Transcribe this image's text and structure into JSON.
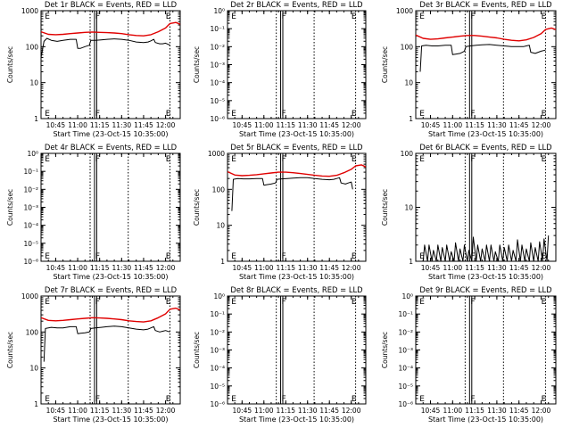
{
  "chart_data": [
    {
      "type": "line",
      "title": "Det 1r BLACK = Events, RED = LLD",
      "xlabel": "Start Time (23-Oct-15 10:35:00)",
      "ylabel": "Counts/sec",
      "yscale": "log",
      "ylim": [
        1,
        1000
      ],
      "y_ticks": [
        "1",
        "10",
        "100",
        "1000"
      ],
      "x_ticks": [
        "10:45",
        "11:00",
        "11:15",
        "11:30",
        "11:45",
        "12:00"
      ],
      "flags": [
        "E",
        "F",
        "E"
      ],
      "series": [
        {
          "color": "#000000",
          "x": [
            "10:35",
            "10:37",
            "10:39",
            "10:42",
            "10:46",
            "10:50",
            "10:55",
            "10:59",
            "11:00",
            "11:02",
            "11:05",
            "11:08",
            "11:09",
            "11:12",
            "11:16",
            "11:20",
            "11:25",
            "11:30",
            "11:35",
            "11:40",
            "11:45",
            "11:48",
            "11:50",
            "11:52",
            "11:53",
            "11:56",
            "11:58",
            "12:00",
            "12:03"
          ],
          "values": [
            50,
            140,
            170,
            150,
            140,
            150,
            160,
            160,
            90,
            90,
            100,
            110,
            150,
            150,
            155,
            160,
            165,
            160,
            150,
            135,
            130,
            135,
            145,
            160,
            130,
            120,
            120,
            125,
            110
          ]
        },
        {
          "color": "#e00000",
          "x": [
            "10:35",
            "10:40",
            "10:45",
            "10:50",
            "10:55",
            "11:00",
            "11:05",
            "11:10",
            "11:15",
            "11:20",
            "11:25",
            "11:30",
            "11:35",
            "11:40",
            "11:45",
            "11:50",
            "11:55",
            "12:00",
            "12:03",
            "12:07",
            "12:10"
          ],
          "values": [
            260,
            220,
            215,
            220,
            230,
            240,
            250,
            255,
            250,
            245,
            240,
            230,
            215,
            205,
            200,
            215,
            260,
            330,
            440,
            470,
            420
          ]
        }
      ]
    },
    {
      "type": "line",
      "title": "Det 2r BLACK = Events, RED = LLD",
      "xlabel": "Start Time (23-Oct-15 10:35:00)",
      "ylabel": "Counts/sec",
      "yscale": "log",
      "ylim": [
        1e-06,
        1
      ],
      "y_ticks": [
        "10⁻⁶",
        "10⁻⁵",
        "10⁻⁴",
        "10⁻³",
        "10⁻²",
        "10⁻¹",
        "10⁰"
      ],
      "x_ticks": [
        "10:45",
        "11:00",
        "11:15",
        "11:30",
        "11:45",
        "12:00"
      ],
      "flags": [
        "E",
        "F",
        "E"
      ],
      "series": []
    },
    {
      "type": "line",
      "title": "Det 3r BLACK = Events, RED = LLD",
      "xlabel": "Start Time (23-Oct-15 10:35:00)",
      "ylabel": "Counts/sec",
      "yscale": "log",
      "ylim": [
        1,
        1000
      ],
      "y_ticks": [
        "1",
        "10",
        "100",
        "1000"
      ],
      "x_ticks": [
        "10:45",
        "11:00",
        "11:15",
        "11:30",
        "11:45",
        "12:00"
      ],
      "flags": [
        "E",
        "F",
        "E"
      ],
      "series": [
        {
          "color": "#000000",
          "x": [
            "10:38",
            "10:39",
            "10:42",
            "10:46",
            "10:50",
            "10:55",
            "10:59",
            "11:00",
            "11:02",
            "11:05",
            "11:08",
            "11:09",
            "11:12",
            "11:16",
            "11:20",
            "11:25",
            "11:30",
            "11:35",
            "11:40",
            "11:45",
            "11:48",
            "11:50",
            "11:52",
            "11:53",
            "11:56",
            "11:58",
            "12:00",
            "12:03"
          ],
          "values": [
            20,
            105,
            110,
            105,
            105,
            110,
            110,
            60,
            62,
            65,
            75,
            100,
            105,
            110,
            112,
            115,
            110,
            105,
            100,
            100,
            100,
            105,
            110,
            70,
            65,
            70,
            75,
            80
          ]
        },
        {
          "color": "#e00000",
          "x": [
            "10:35",
            "10:40",
            "10:45",
            "10:50",
            "10:55",
            "11:00",
            "11:05",
            "11:10",
            "11:15",
            "11:20",
            "11:25",
            "11:30",
            "11:35",
            "11:40",
            "11:45",
            "11:50",
            "11:55",
            "12:00",
            "12:03",
            "12:07",
            "12:10"
          ],
          "values": [
            210,
            170,
            160,
            165,
            175,
            185,
            195,
            205,
            205,
            195,
            185,
            175,
            160,
            150,
            145,
            155,
            180,
            230,
            300,
            330,
            300
          ]
        }
      ]
    },
    {
      "type": "line",
      "title": "Det 4r BLACK = Events, RED = LLD",
      "xlabel": "Start Time (23-Oct-15 10:35:00)",
      "ylabel": "Counts/sec",
      "yscale": "log",
      "ylim": [
        1e-06,
        1
      ],
      "y_ticks": [
        "10⁻⁶",
        "10⁻⁵",
        "10⁻⁴",
        "10⁻³",
        "10⁻²",
        "10⁻¹",
        "10⁰"
      ],
      "x_ticks": [
        "10:45",
        "11:00",
        "11:15",
        "11:30",
        "11:45",
        "12:00"
      ],
      "flags": [
        "E",
        "F",
        "E"
      ],
      "series": []
    },
    {
      "type": "line",
      "title": "Det 5r BLACK = Events, RED = LLD",
      "xlabel": "Start Time (23-Oct-15 10:35:00)",
      "ylabel": "Counts/sec",
      "yscale": "log",
      "ylim": [
        1,
        1000
      ],
      "y_ticks": [
        "1",
        "10",
        "100",
        "1000"
      ],
      "x_ticks": [
        "10:45",
        "11:00",
        "11:15",
        "11:30",
        "11:45",
        "12:00"
      ],
      "flags": [
        "E",
        "F",
        "E"
      ],
      "series": [
        {
          "color": "#000000",
          "x": [
            "10:38",
            "10:39",
            "10:42",
            "10:46",
            "10:50",
            "10:55",
            "10:59",
            "11:00",
            "11:02",
            "11:05",
            "11:08",
            "11:09",
            "11:12",
            "11:16",
            "11:20",
            "11:25",
            "11:30",
            "11:35",
            "11:40",
            "11:45",
            "11:48",
            "11:50",
            "11:52",
            "11:53",
            "11:56",
            "11:58",
            "12:00",
            "12:01"
          ],
          "values": [
            25,
            190,
            200,
            195,
            195,
            200,
            200,
            130,
            135,
            140,
            150,
            190,
            195,
            200,
            205,
            210,
            210,
            200,
            190,
            185,
            190,
            200,
            210,
            150,
            140,
            150,
            160,
            100
          ]
        },
        {
          "color": "#e00000",
          "x": [
            "10:35",
            "10:40",
            "10:45",
            "10:50",
            "10:55",
            "11:00",
            "11:05",
            "11:10",
            "11:15",
            "11:20",
            "11:25",
            "11:30",
            "11:35",
            "11:40",
            "11:45",
            "11:50",
            "11:55",
            "12:00",
            "12:03",
            "12:07",
            "12:10"
          ],
          "values": [
            310,
            250,
            240,
            245,
            255,
            270,
            285,
            300,
            300,
            290,
            275,
            260,
            245,
            235,
            230,
            245,
            290,
            360,
            450,
            480,
            420
          ]
        }
      ]
    },
    {
      "type": "line",
      "title": "Det 6r BLACK = Events, RED = LLD",
      "xlabel": "Start Time (23-Oct-15 10:35:00)",
      "ylabel": "Counts/sec",
      "yscale": "log",
      "ylim": [
        1,
        100
      ],
      "y_ticks": [
        "1",
        "10",
        "100"
      ],
      "x_ticks": [
        "10:45",
        "11:00",
        "11:15",
        "11:30",
        "11:45",
        "12:00"
      ],
      "flags": [
        "E",
        "F",
        "E"
      ],
      "series": [
        {
          "color": "#000000",
          "x": [
            "10:40",
            "10:41",
            "10:43",
            "10:44",
            "10:46",
            "10:47",
            "10:49",
            "10:50",
            "10:52",
            "10:53",
            "10:55",
            "10:56",
            "10:58",
            "10:59",
            "11:01",
            "11:02",
            "11:04",
            "11:05",
            "11:07",
            "11:08",
            "11:10",
            "11:11",
            "11:13",
            "11:14",
            "11:16",
            "11:17",
            "11:19",
            "11:20",
            "11:22",
            "11:23",
            "11:25",
            "11:26",
            "11:28",
            "11:29",
            "11:31",
            "11:32",
            "11:34",
            "11:35",
            "11:37",
            "11:38",
            "11:40",
            "11:41",
            "11:43",
            "11:44",
            "11:46",
            "11:47",
            "11:49",
            "11:50",
            "11:52",
            "11:53",
            "11:55",
            "11:56",
            "11:58",
            "11:59",
            "12:01",
            "12:02",
            "12:04",
            "12:05"
          ],
          "values": [
            1,
            2,
            1,
            2,
            1,
            1.6,
            1,
            2,
            1,
            1.8,
            1,
            2,
            1,
            1.5,
            1,
            2.2,
            1,
            1.7,
            1,
            2,
            1,
            1.6,
            1,
            2.8,
            1,
            2,
            1,
            1.7,
            1,
            2,
            1,
            2,
            1,
            1.5,
            1,
            2,
            1,
            1.8,
            1,
            2,
            1,
            1.6,
            1,
            2.5,
            1,
            2,
            1,
            1.7,
            1,
            2.2,
            1,
            1.8,
            1,
            2.3,
            1,
            2.6,
            1,
            3
          ]
        }
      ]
    },
    {
      "type": "line",
      "title": "Det 7r BLACK = Events, RED = LLD",
      "xlabel": "Start Time (23-Oct-15 10:35:00)",
      "ylabel": "Counts/sec",
      "yscale": "log",
      "ylim": [
        1,
        1000
      ],
      "y_ticks": [
        "1",
        "10",
        "100",
        "1000"
      ],
      "x_ticks": [
        "10:45",
        "11:00",
        "11:15",
        "11:30",
        "11:45",
        "12:00"
      ],
      "flags": [
        "E",
        "F",
        "E"
      ],
      "series": [
        {
          "color": "#000000",
          "x": [
            "10:37",
            "10:38",
            "10:42",
            "10:46",
            "10:50",
            "10:55",
            "10:59",
            "11:00",
            "11:02",
            "11:05",
            "11:08",
            "11:09",
            "11:12",
            "11:16",
            "11:20",
            "11:25",
            "11:30",
            "11:35",
            "11:40",
            "11:45",
            "11:48",
            "11:50",
            "11:52",
            "11:53",
            "11:56",
            "11:58",
            "12:00",
            "12:03"
          ],
          "values": [
            15,
            125,
            135,
            130,
            130,
            140,
            140,
            90,
            92,
            95,
            100,
            125,
            130,
            135,
            140,
            145,
            140,
            130,
            120,
            115,
            120,
            130,
            140,
            110,
            100,
            105,
            110,
            100
          ]
        },
        {
          "color": "#e00000",
          "x": [
            "10:35",
            "10:40",
            "10:45",
            "10:50",
            "10:55",
            "11:00",
            "11:05",
            "11:10",
            "11:15",
            "11:20",
            "11:25",
            "11:30",
            "11:35",
            "11:40",
            "11:45",
            "11:50",
            "11:55",
            "12:00",
            "12:03",
            "12:07",
            "12:10"
          ],
          "values": [
            250,
            210,
            205,
            210,
            220,
            230,
            240,
            250,
            245,
            240,
            230,
            220,
            205,
            195,
            190,
            205,
            250,
            320,
            430,
            460,
            410
          ]
        }
      ]
    },
    {
      "type": "line",
      "title": "Det 8r BLACK = Events, RED = LLD",
      "xlabel": "Start Time (23-Oct-15 10:35:00)",
      "ylabel": "Counts/sec",
      "yscale": "log",
      "ylim": [
        1e-06,
        1
      ],
      "y_ticks": [
        "10⁻⁶",
        "10⁻⁵",
        "10⁻⁴",
        "10⁻³",
        "10⁻²",
        "10⁻¹",
        "10⁰"
      ],
      "x_ticks": [
        "10:45",
        "11:00",
        "11:15",
        "11:30",
        "11:45",
        "12:00"
      ],
      "flags": [
        "E",
        "F",
        "E"
      ],
      "series": []
    },
    {
      "type": "line",
      "title": "Det 9r BLACK = Events, RED = LLD",
      "xlabel": "Start Time (23-Oct-15 10:35:00)",
      "ylabel": "Counts/sec",
      "yscale": "log",
      "ylim": [
        1e-06,
        1
      ],
      "y_ticks": [
        "10⁻⁶",
        "10⁻⁵",
        "10⁻⁴",
        "10⁻³",
        "10⁻²",
        "10⁻¹",
        "10⁰"
      ],
      "x_ticks": [
        "10:45",
        "11:00",
        "11:15",
        "11:30",
        "11:45",
        "12:00"
      ],
      "flags": [
        "E",
        "F",
        "E"
      ],
      "series": []
    }
  ]
}
